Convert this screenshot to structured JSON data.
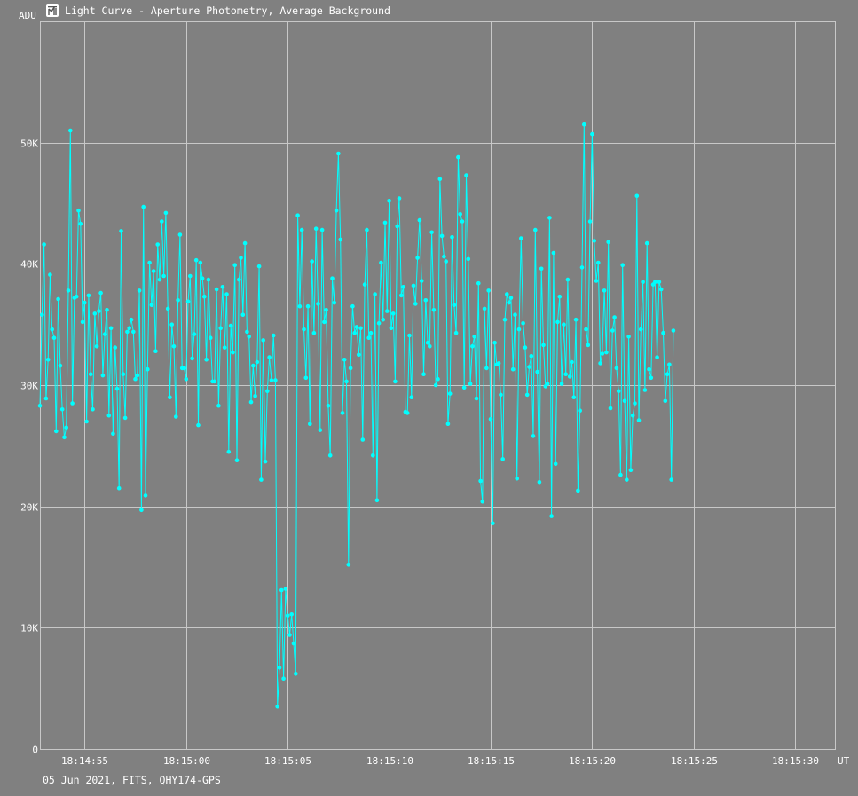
{
  "window": {
    "title": "Light Curve - Aperture Photometry, Average Background",
    "icon": "light-curve-icon"
  },
  "footer": {
    "info": "05 Jun 2021, FITS, QHY174-GPS"
  },
  "colors": {
    "background": "#808080",
    "grid": "#c8c8c8",
    "series": "#00ffff",
    "text": "#ffffff"
  },
  "chart_data": {
    "type": "line",
    "title": "Light Curve - Aperture Photometry, Average Background",
    "ylabel": "ADU",
    "xlabel": "UT",
    "ylim": [
      0,
      60000
    ],
    "xlim": [
      "18:14:52.8",
      "18:15:32"
    ],
    "grid": true,
    "markers": true,
    "y_ticks": [
      {
        "value": 0,
        "label": "0"
      },
      {
        "value": 10000,
        "label": "10K"
      },
      {
        "value": 20000,
        "label": "20K"
      },
      {
        "value": 30000,
        "label": "30K"
      },
      {
        "value": 40000,
        "label": "40K"
      },
      {
        "value": 50000,
        "label": "50K"
      }
    ],
    "x_ticks": [
      {
        "value": 2.2,
        "label": "18:14:55"
      },
      {
        "value": 7.2,
        "label": "18:15:00"
      },
      {
        "value": 12.2,
        "label": "18:15:05"
      },
      {
        "value": 17.2,
        "label": "18:15:10"
      },
      {
        "value": 22.2,
        "label": "18:15:15"
      },
      {
        "value": 27.2,
        "label": "18:15:20"
      },
      {
        "value": 32.2,
        "label": "18:15:25"
      },
      {
        "value": 37.2,
        "label": "18:15:30"
      }
    ],
    "x_start_label": "18:14:52.8",
    "x_step_seconds": 0.1,
    "series": [
      {
        "values": [
          28300,
          35800,
          41600,
          28900,
          32100,
          39100,
          34600,
          33900,
          26200,
          37100,
          31600,
          28000,
          25700,
          26500,
          37800,
          51000,
          28500,
          37200,
          37300,
          44400,
          43300,
          35200,
          36800,
          27000,
          37400,
          30900,
          28000,
          35900,
          33200,
          36100,
          37600,
          30800,
          34200,
          36200,
          27500,
          34700,
          26000,
          33100,
          29700,
          21500,
          42700,
          30900,
          27300,
          34400,
          34700,
          35400,
          34400,
          30500,
          30800,
          37800,
          19700,
          44700,
          20900,
          31300,
          40100,
          36600,
          39400,
          32800,
          41600,
          38700,
          43500,
          39000,
          44200,
          36300,
          29000,
          35000,
          33200,
          27400,
          37000,
          42400,
          31400,
          31400,
          30500,
          36900,
          39000,
          32200,
          34200,
          40300,
          26700,
          40100,
          38800,
          37300,
          32100,
          38700,
          33900,
          30300,
          30300,
          37900,
          28300,
          34700,
          38100,
          33100,
          37500,
          24500,
          34900,
          32700,
          39900,
          23800,
          38700,
          40500,
          35800,
          41700,
          34400,
          34000,
          28600,
          31600,
          29100,
          31900,
          39800,
          22200,
          33700,
          23700,
          29500,
          32300,
          30400,
          34100,
          30400,
          3500,
          6700,
          13100,
          5800,
          13200,
          11000,
          9400,
          11100,
          8700,
          6200,
          44000,
          36500,
          42800,
          34600,
          30600,
          36500,
          26800,
          40200,
          34300,
          42900,
          36700,
          26300,
          42800,
          35200,
          36200,
          28300,
          24200,
          38800,
          36800,
          44400,
          49100,
          42000,
          27700,
          32100,
          30300,
          15200,
          31400,
          36500,
          34300,
          34800,
          32500,
          34700,
          25500,
          38300,
          42800,
          33900,
          34300,
          24200,
          37500,
          20500,
          35100,
          40100,
          35400,
          43400,
          36100,
          45200,
          34700,
          35900,
          30300,
          43100,
          45400,
          37400,
          38100,
          27800,
          27700,
          34100,
          29000,
          38200,
          36700,
          40500,
          43600,
          38600,
          30900,
          37000,
          33500,
          33200,
          42600,
          36200,
          30000,
          30500,
          47000,
          42300,
          40600,
          40200,
          26800,
          29300,
          42200,
          36600,
          34300,
          48800,
          44100,
          43500,
          29800,
          47300,
          40400,
          30100,
          33200,
          34000,
          28900,
          38400,
          22100,
          20400,
          36300,
          31400,
          37800,
          27200,
          18600,
          33500,
          31700,
          31800,
          29200,
          23900,
          35400,
          37500,
          36800,
          37200,
          31300,
          35800,
          22300,
          34600,
          42100,
          35100,
          33100,
          29200,
          31500,
          32400,
          25800,
          42800,
          31100,
          22000,
          39600,
          33300,
          29900,
          30100,
          43800,
          19200,
          40900,
          23500,
          35200,
          37300,
          30100,
          35000,
          30900,
          38700,
          30700,
          31900,
          29000,
          35400,
          21300,
          27900,
          39700,
          51500,
          34600,
          33300,
          43500,
          50700,
          41900,
          38600,
          40100,
          31800,
          32600,
          37800,
          32700,
          41800,
          28100,
          34500,
          35600,
          31400,
          29500,
          22600,
          39900,
          28700,
          22200,
          34000,
          23000,
          27500,
          28500,
          45600,
          27100,
          34600,
          38500,
          29600,
          41700,
          31300,
          30600,
          38300,
          38500,
          32300,
          38500,
          37900,
          34300,
          28700,
          30900,
          31700,
          22200,
          34500
        ]
      }
    ]
  }
}
